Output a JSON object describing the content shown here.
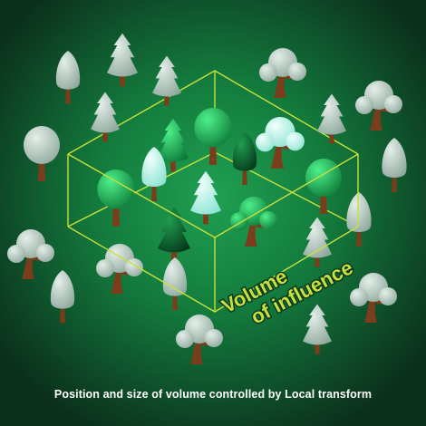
{
  "colors": {
    "background": "#0d3a22",
    "glow": "#1fa052",
    "volume_outline": "#c8e03c",
    "label": "#c8e03c",
    "caption": "#ffffff",
    "trunk": "#7a3e1c",
    "tree_outside": "#9fb9ae",
    "tree_inside_green": "#1cb45a",
    "tree_inside_dark": "#0c5a2c",
    "tree_inside_cyan": "#b8f4ea"
  },
  "volume_label": {
    "line1": "Volume",
    "line2": "of influence"
  },
  "caption": "Position and size of volume controlled  by Local transform"
}
